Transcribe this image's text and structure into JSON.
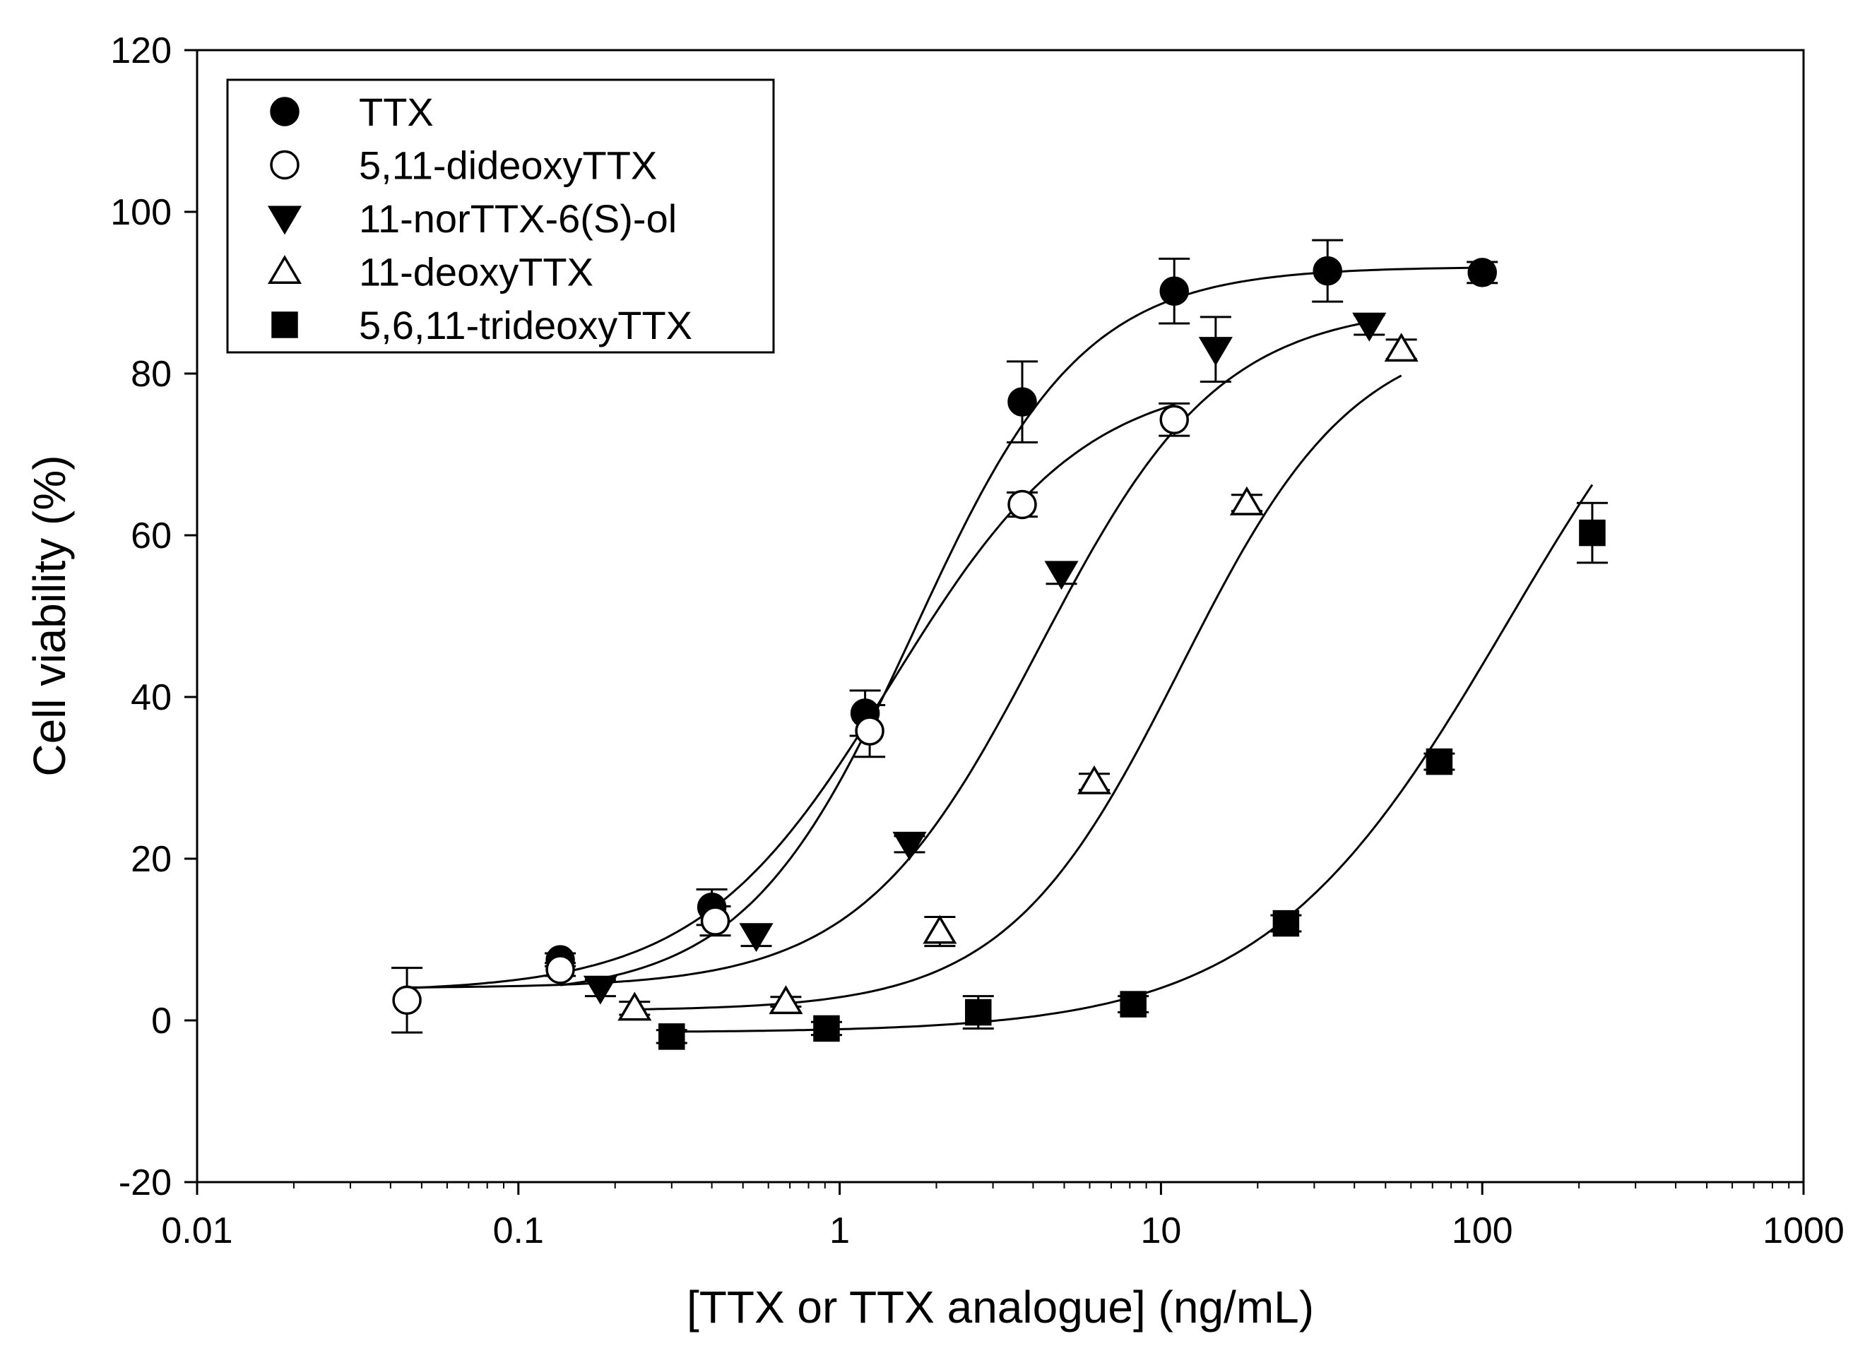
{
  "chart_data": {
    "type": "scatter",
    "title": "",
    "xlabel": "[TTX or TTX analogue] (ng/mL)",
    "ylabel": "Cell viability (%)",
    "xscale": "log",
    "xlim": [
      0.01,
      1000
    ],
    "ylim": [
      -20,
      120
    ],
    "xticks": [
      0.01,
      0.1,
      1,
      10,
      100,
      1000
    ],
    "xtick_labels": [
      "0.01",
      "0.1",
      "1",
      "10",
      "100",
      "1000"
    ],
    "yticks": [
      -20,
      0,
      20,
      40,
      60,
      80,
      100,
      120
    ],
    "ytick_labels": [
      "-20",
      "0",
      "20",
      "40",
      "60",
      "80",
      "100",
      "120"
    ],
    "grid": false,
    "legend_position": "top-left",
    "series": [
      {
        "name": "TTX",
        "marker": "filled-circle",
        "color": "#000000",
        "points": [
          {
            "x": 0.135,
            "y": 7.5,
            "err": 0.8
          },
          {
            "x": 0.4,
            "y": 14,
            "err": 2.2
          },
          {
            "x": 1.2,
            "y": 38,
            "err": 2.8
          },
          {
            "x": 3.7,
            "y": 76.5,
            "err": 5
          },
          {
            "x": 11,
            "y": 90.2,
            "err": 4
          },
          {
            "x": 33,
            "y": 92.7,
            "err": 3.8
          },
          {
            "x": 100,
            "y": 92.5,
            "err": 1.3
          }
        ],
        "fit": {
          "bottom": 3.0,
          "top": 93.2,
          "ec50": 1.7,
          "hill": 1.65,
          "xrange": [
            0.135,
            100
          ]
        }
      },
      {
        "name": "5,11-dideoxyTTX",
        "marker": "open-circle",
        "color": "#000000",
        "points": [
          {
            "x": 0.045,
            "y": 2.5,
            "err": 4
          },
          {
            "x": 0.135,
            "y": 6.3,
            "err": 0.8
          },
          {
            "x": 0.41,
            "y": 12.3,
            "err": 1.8
          },
          {
            "x": 1.24,
            "y": 35.8,
            "err": 3.2
          },
          {
            "x": 3.7,
            "y": 63.8,
            "err": 1.5
          },
          {
            "x": 11,
            "y": 74.3,
            "err": 2
          }
        ],
        "fit": {
          "bottom": 3.5,
          "top": 80.0,
          "ec50": 1.45,
          "hill": 1.45,
          "xrange": [
            0.045,
            11
          ]
        }
      },
      {
        "name": "11-norTTX-6(S)-ol",
        "marker": "filled-triangle-down",
        "color": "#000000",
        "points": [
          {
            "x": 0.18,
            "y": 4,
            "err": 1
          },
          {
            "x": 0.55,
            "y": 10.5,
            "err": 1.3
          },
          {
            "x": 1.65,
            "y": 21.8,
            "err": 1
          },
          {
            "x": 4.9,
            "y": 55.3,
            "err": 1.3
          },
          {
            "x": 14.8,
            "y": 83,
            "err": 4
          },
          {
            "x": 44.5,
            "y": 86,
            "err": 1.2
          }
        ],
        "fit": {
          "bottom": 4.0,
          "top": 88.5,
          "ec50": 4.2,
          "hill": 1.55,
          "xrange": [
            0.045,
            44.5
          ]
        }
      },
      {
        "name": "11-deoxyTTX",
        "marker": "open-triangle-up",
        "color": "#000000",
        "points": [
          {
            "x": 0.23,
            "y": 1.5,
            "err": 0.8
          },
          {
            "x": 0.68,
            "y": 2.3,
            "err": 0.6
          },
          {
            "x": 2.05,
            "y": 11,
            "err": 1.8
          },
          {
            "x": 6.2,
            "y": 29.5,
            "err": 1
          },
          {
            "x": 18.5,
            "y": 64,
            "err": 1
          },
          {
            "x": 56,
            "y": 83,
            "err": 1.2
          }
        ],
        "fit": {
          "bottom": 1.2,
          "top": 86.0,
          "ec50": 11.5,
          "hill": 1.6,
          "xrange": [
            0.23,
            56
          ]
        }
      },
      {
        "name": "5,6,11-trideoxyTTX",
        "marker": "filled-square",
        "color": "#000000",
        "points": [
          {
            "x": 0.3,
            "y": -2,
            "err": 0.8
          },
          {
            "x": 0.91,
            "y": -1,
            "err": 0.8
          },
          {
            "x": 2.7,
            "y": 1,
            "err": 2
          },
          {
            "x": 8.2,
            "y": 2,
            "err": 1
          },
          {
            "x": 24.5,
            "y": 12,
            "err": 1
          },
          {
            "x": 73.5,
            "y": 32,
            "err": 1
          },
          {
            "x": 220,
            "y": 60.3,
            "err": 3.7
          }
        ],
        "fit": {
          "bottom": -1.5,
          "top": 100.0,
          "ec50": 120,
          "hill": 1.15,
          "xrange": [
            0.3,
            220
          ]
        }
      }
    ]
  }
}
